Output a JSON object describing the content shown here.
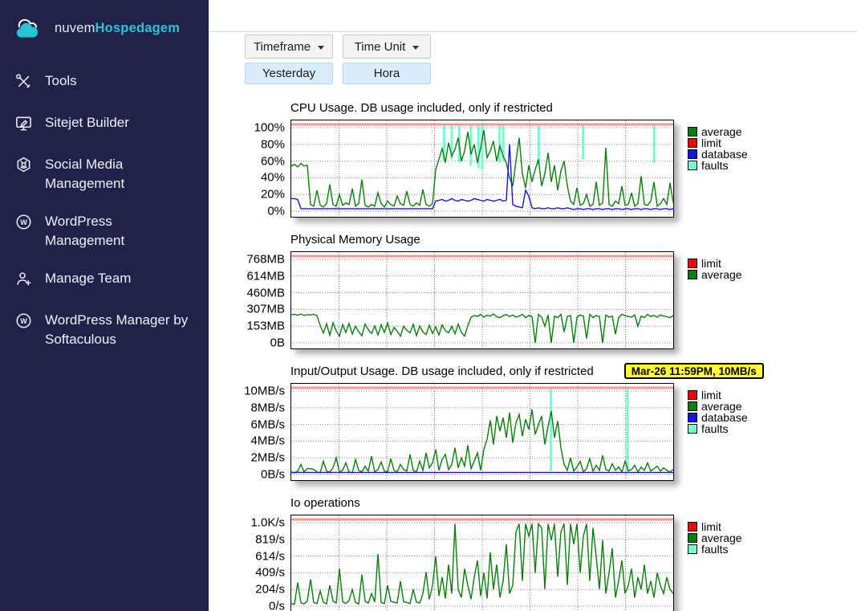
{
  "sidebar": {
    "bg_color": "#1f2349",
    "accent_color": "#2bc3d7",
    "brand": {
      "name_light": "nuvem",
      "name_accent": "Hospedagem",
      "logo": "cloud-icon"
    },
    "items": [
      {
        "label": "Tools",
        "icon": "tools-icon"
      },
      {
        "label": "Sitejet Builder",
        "icon": "sitejet-builder-icon"
      },
      {
        "label": "Social Media Management",
        "icon": "social-media-icon"
      },
      {
        "label": "WordPress Management",
        "icon": "wordpress-icon"
      },
      {
        "label": "Manage Team",
        "icon": "manage-team-icon"
      },
      {
        "label": "WordPress Manager by Softaculous",
        "icon": "wordpress-icon"
      }
    ]
  },
  "toolbar": {
    "timeframe_label": "Timeframe",
    "timeunit_label": "Time Unit",
    "timeframe_value": "Yesterday",
    "timeunit_value": "Hora"
  },
  "colors": {
    "average": "#0a7e0a",
    "limit_swatch": "#ff0000",
    "limit_line": "#ff9595",
    "database": "#1414ee",
    "faults": "#72ffd2",
    "grid": "#858585",
    "tooltip_bg": "#ffff33"
  },
  "chart_data": [
    {
      "id": "cpu-usage",
      "type": "line",
      "title": "CPU Usage. DB usage included, only if restricted",
      "ylim": [
        0,
        100
      ],
      "yticks": [
        "100%",
        "80%",
        "60%",
        "40%",
        "20%",
        "0%"
      ],
      "legend": [
        {
          "label": "average",
          "color": "#0a7e0a"
        },
        {
          "label": "limit",
          "color": "#ff0000"
        },
        {
          "label": "database",
          "color": "#1414ee"
        },
        {
          "label": "faults",
          "color": "#72ffd2"
        }
      ],
      "limit_value": 100,
      "faults": [
        [
          0.4,
          60
        ],
        [
          0.42,
          62
        ],
        [
          0.44,
          58
        ],
        [
          0.47,
          55
        ],
        [
          0.49,
          52
        ],
        [
          0.5,
          50
        ],
        [
          0.545,
          58
        ],
        [
          0.555,
          60
        ],
        [
          0.648,
          55
        ],
        [
          0.764,
          62
        ],
        [
          0.95,
          58
        ]
      ],
      "series": [
        {
          "name": "average",
          "color": "#0a7e0a",
          "values": [
            54,
            56,
            53,
            57,
            54,
            55,
            8,
            6,
            25,
            7,
            5,
            9,
            32,
            8,
            6,
            20,
            7,
            10,
            8,
            27,
            6,
            9,
            38,
            7,
            5,
            8,
            6,
            22,
            9,
            5,
            12,
            8,
            6,
            18,
            9,
            7,
            24,
            8,
            6,
            10,
            7,
            26,
            8,
            6,
            9,
            50,
            62,
            75,
            58,
            82,
            66,
            74,
            88,
            60,
            72,
            95,
            68,
            80,
            58,
            76,
            97,
            64,
            72,
            84,
            60,
            78,
            66,
            58,
            40,
            30,
            60,
            88,
            45,
            28,
            55,
            35,
            50,
            62,
            30,
            45,
            70,
            35,
            55,
            25,
            48,
            60,
            30,
            12,
            8,
            28,
            7,
            9,
            20,
            6,
            8,
            35,
            7,
            10,
            76,
            8,
            6,
            12,
            9,
            30,
            7,
            8,
            22,
            6,
            9,
            42,
            8,
            7,
            12,
            35,
            6,
            9,
            15,
            8,
            34,
            10
          ]
        },
        {
          "name": "database",
          "color": "#1414ee",
          "values": [
            15,
            15,
            14,
            3,
            3,
            3,
            3,
            3,
            3,
            3,
            3,
            3,
            3,
            3,
            3,
            3,
            3,
            3,
            3,
            3,
            3,
            3,
            3,
            3,
            3,
            3,
            3,
            3,
            3,
            3,
            3,
            3,
            3,
            3,
            3,
            3,
            3,
            3,
            3,
            3,
            3,
            3,
            3,
            3,
            3,
            12,
            13,
            14,
            12,
            13,
            15,
            13,
            12,
            14,
            13,
            12,
            13,
            15,
            14,
            13,
            12,
            14,
            13,
            12,
            13,
            14,
            12,
            13,
            80,
            8,
            6,
            5,
            4,
            25,
            18,
            4,
            3,
            4,
            3,
            3,
            4,
            3,
            3,
            4,
            3,
            3,
            4,
            3,
            2,
            3,
            3,
            2,
            3,
            3,
            2,
            3,
            3,
            2,
            3,
            3,
            2,
            3,
            3,
            2,
            3,
            3,
            2,
            3,
            3,
            2,
            3,
            3,
            2,
            3,
            3,
            2,
            3,
            3,
            2,
            3
          ]
        }
      ]
    },
    {
      "id": "memory-usage",
      "type": "line",
      "title": "Physical Memory Usage",
      "ylim": [
        0,
        768
      ],
      "yticks": [
        "768MB",
        "614MB",
        "460MB",
        "307MB",
        "153MB",
        "0B"
      ],
      "legend": [
        {
          "label": "limit",
          "color": "#ff0000"
        },
        {
          "label": "average",
          "color": "#0a7e0a"
        }
      ],
      "limit_value": 768,
      "faults": [],
      "series": [
        {
          "name": "average",
          "color": "#0a7e0a",
          "values": [
            258,
            262,
            255,
            265,
            252,
            260,
            256,
            262,
            250,
            160,
            90,
            175,
            70,
            185,
            110,
            62,
            168,
            95,
            178,
            80,
            152,
            102,
            66,
            172,
            122,
            86,
            156,
            72,
            166,
            96,
            182,
            76,
            142,
            106,
            62,
            152,
            116,
            92,
            170,
            66,
            156,
            100,
            76,
            162,
            86,
            146,
            72,
            166,
            112,
            92,
            152,
            82,
            172,
            96,
            62,
            158,
            235,
            252,
            242,
            262,
            236,
            255,
            246,
            266,
            240,
            232,
            250,
            260,
            242,
            256,
            236,
            246,
            262,
            232,
            252,
            242,
            0,
            262,
            236,
            152,
            256,
            0,
            246,
            232,
            262,
            100,
            242,
            252,
            0,
            236,
            256,
            246,
            40,
            262,
            232,
            252,
            242,
            0,
            256,
            236,
            246,
            80,
            232,
            262,
            250,
            242,
            236,
            256,
            152,
            246,
            232,
            262,
            242,
            252,
            236,
            256,
            246,
            240,
            232,
            250
          ]
        }
      ]
    },
    {
      "id": "io-usage",
      "type": "line",
      "title": "Input/Output Usage. DB usage included, only if restricted",
      "tooltip": "Mar-26 11:59PM, 10MB/s",
      "ylim": [
        0,
        10
      ],
      "yticks": [
        "10MB/s",
        "8MB/s",
        "6MB/s",
        "4MB/s",
        "2MB/s",
        "0B/s"
      ],
      "legend": [
        {
          "label": "limit",
          "color": "#ff0000"
        },
        {
          "label": "average",
          "color": "#0a7e0a"
        },
        {
          "label": "database",
          "color": "#1414ee"
        },
        {
          "label": "faults",
          "color": "#72ffd2"
        }
      ],
      "limit_value": 10,
      "faults": [
        [
          0.68,
          0.4
        ],
        [
          0.88,
          0.4
        ]
      ],
      "series": [
        {
          "name": "average",
          "color": "#0a7e0a",
          "values": [
            0.3,
            0.2,
            0.4,
            1.2,
            0.3,
            0.7,
            0.7,
            0.6,
            0.3,
            0.2,
            1.6,
            0.4,
            0.3,
            0.8,
            2.0,
            0.3,
            0.5,
            1.4,
            0.3,
            0.2,
            1.8,
            0.5,
            0.3,
            1.0,
            0.4,
            2.2,
            0.3,
            0.6,
            1.5,
            0.4,
            0.3,
            1.9,
            0.5,
            0.3,
            1.2,
            0.6,
            0.4,
            2.4,
            0.5,
            0.3,
            1.6,
            0.5,
            2.6,
            0.8,
            1.4,
            3.0,
            0.5,
            1.8,
            2.4,
            0.6,
            1.2,
            3.2,
            0.8,
            2.0,
            1.0,
            3.5,
            0.7,
            1.6,
            2.6,
            0.5,
            3.0,
            4.2,
            6.5,
            3.6,
            7.0,
            5.2,
            6.8,
            4.4,
            7.4,
            3.8,
            6.2,
            7.2,
            4.6,
            6.6,
            5.4,
            7.8,
            4.8,
            6.0,
            7.0,
            3.6,
            5.8,
            7.6,
            4.4,
            6.4,
            3.2,
            1.2,
            0.5,
            2.0,
            0.4,
            0.9,
            1.6,
            0.3,
            0.7,
            1.9,
            0.4,
            1.1,
            0.5,
            2.3,
            0.6,
            0.4,
            1.3,
            0.5,
            0.9,
            0.3,
            1.6,
            0.4,
            0.6,
            1.1,
            0.3,
            0.9,
            0.5,
            1.4,
            0.4,
            0.7,
            1.0,
            0.4,
            0.8,
            0.5,
            0.3,
            0.6
          ]
        },
        {
          "name": "database",
          "color": "#1414ee",
          "const": 0.25
        }
      ]
    },
    {
      "id": "io-operations",
      "type": "line",
      "title": "Io operations",
      "ylim": [
        0,
        1024
      ],
      "yticks": [
        "1.0K/s",
        "819/s",
        "614/s",
        "409/s",
        "204/s",
        "0/s"
      ],
      "legend": [
        {
          "label": "limit",
          "color": "#ff0000"
        },
        {
          "label": "average",
          "color": "#0a7e0a"
        },
        {
          "label": "faults",
          "color": "#72ffd2"
        }
      ],
      "limit_value": 1024,
      "faults": [],
      "series": [
        {
          "name": "average",
          "color": "#0a7e0a",
          "values": [
            30,
            25,
            290,
            40,
            28,
            65,
            330,
            45,
            32,
            185,
            50,
            28,
            255,
            65,
            38,
            460,
            55,
            32,
            70,
            205,
            45,
            28,
            390,
            60,
            38,
            155,
            52,
            640,
            45,
            32,
            255,
            60,
            48,
            38,
            305,
            55,
            45,
            32,
            205,
            50,
            38,
            155,
            420,
            85,
            255,
            610,
            125,
            355,
            95,
            510,
            155,
            1010,
            205,
            105,
            460,
            255,
            85,
            355,
            560,
            125,
            410,
            95,
            660,
            205,
            510,
            105,
            310,
            760,
            155,
            255,
            910,
            1010,
            310,
            1010,
            860,
            1010,
            410,
            1010,
            960,
            210,
            1010,
            810,
            1010,
            360,
            910,
            1010,
            260,
            1010,
            760,
            1010,
            410,
            860,
            1010,
            310,
            960,
            610,
            210,
            810,
            155,
            410,
            710,
            105,
            310,
            560,
            155,
            255,
            460,
            105,
            355,
            205,
            510,
            155,
            310,
            105,
            410,
            255,
            155,
            355,
            205,
            155
          ]
        }
      ]
    }
  ]
}
